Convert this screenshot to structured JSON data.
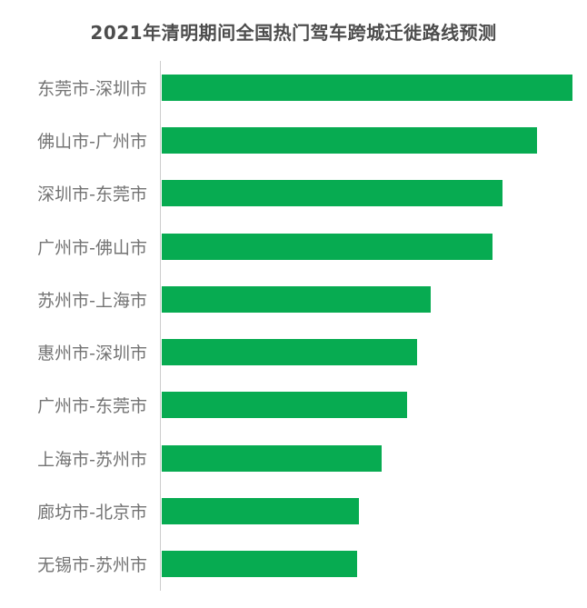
{
  "chart_data": {
    "type": "bar",
    "orientation": "horizontal",
    "title": "2021年清明期间全国热门驾车跨城迁徙路线预测",
    "categories": [
      "东莞市-深圳市",
      "佛山市-广州市",
      "深圳市-东莞市",
      "广州市-佛山市",
      "苏州市-上海市",
      "惠州市-深圳市",
      "广州市-东莞市",
      "上海市-苏州市",
      "廊坊市-北京市",
      "无锡市-苏州市"
    ],
    "values": [
      100,
      91.4,
      83.0,
      80.5,
      65.5,
      62.2,
      59.7,
      53.5,
      48.0,
      47.6
    ],
    "max_value": 100,
    "value_note": "relative heat index; no numeric axis or data labels shown in chart",
    "xlabel": "",
    "ylabel": "",
    "grid": false,
    "legend": null,
    "colors": {
      "bar": "#07AB51",
      "title_text": "#4d4d4d",
      "label_text": "#737373",
      "axis_line": "#cccccc",
      "background": "#ffffff"
    }
  }
}
